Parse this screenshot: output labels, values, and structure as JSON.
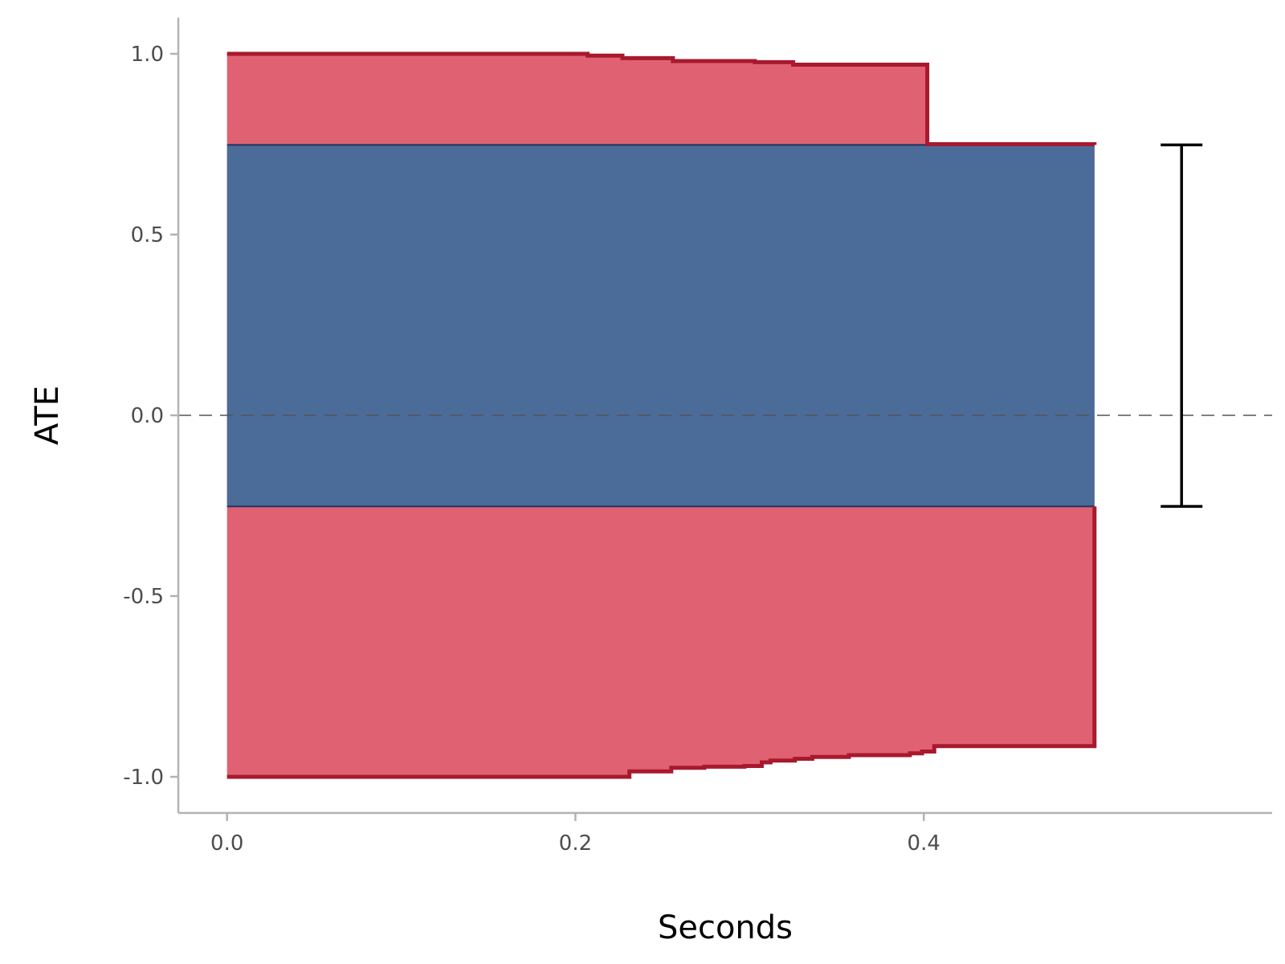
{
  "chart_data": {
    "type": "area",
    "xlabel": "Seconds",
    "ylabel": "ATE",
    "xlim": [
      -0.028,
      0.6
    ],
    "ylim": [
      -1.1,
      1.1
    ],
    "x_ticks": [
      0.0,
      0.2,
      0.4
    ],
    "x_tick_labels": [
      "0.0",
      "0.2",
      "0.4"
    ],
    "y_ticks": [
      -1.0,
      -0.5,
      0.0,
      0.5,
      1.0
    ],
    "y_tick_labels": [
      "-1.0",
      "-0.5",
      "0.0",
      "0.5",
      "1.0"
    ],
    "grid": false,
    "reference_line": {
      "y": 0.0,
      "style": "dashed",
      "color": "#555555"
    },
    "colors": {
      "outer_fill": "#e06272",
      "outer_line": "#a8192e",
      "inner_fill": "#4b6b99",
      "inner_line": "#1f3461",
      "error_bar": "#000000"
    },
    "series": [
      {
        "role": "upper_bound",
        "x": [
          0.0,
          0.2,
          0.207,
          0.222,
          0.227,
          0.249,
          0.256,
          0.283,
          0.303,
          0.318,
          0.325,
          0.4,
          0.402,
          0.498
        ],
        "y": [
          1.0,
          1.0,
          0.995,
          0.995,
          0.988,
          0.988,
          0.98,
          0.98,
          0.977,
          0.977,
          0.97,
          0.97,
          0.75,
          0.75
        ]
      },
      {
        "role": "lower_bound",
        "x": [
          0.0,
          0.22,
          0.231,
          0.245,
          0.255,
          0.274,
          0.297,
          0.307,
          0.312,
          0.326,
          0.336,
          0.357,
          0.392,
          0.399,
          0.406,
          0.498
        ],
        "y": [
          -1.0,
          -1.0,
          -0.985,
          -0.985,
          -0.975,
          -0.972,
          -0.97,
          -0.96,
          -0.955,
          -0.95,
          -0.945,
          -0.94,
          -0.935,
          -0.93,
          -0.915,
          -0.915
        ]
      },
      {
        "role": "identified_set",
        "x": [
          0.0,
          0.498
        ],
        "upper": [
          0.748,
          0.748
        ],
        "lower": [
          -0.252,
          -0.252
        ]
      }
    ],
    "error_bar": {
      "x": 0.548,
      "lower": -0.252,
      "upper": 0.748
    }
  }
}
